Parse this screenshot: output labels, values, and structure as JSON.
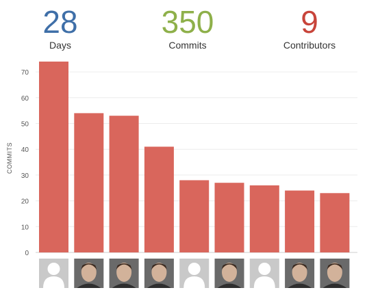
{
  "stats": {
    "days": {
      "value": "28",
      "label": "Days",
      "color": "#3f6fa8"
    },
    "commits": {
      "value": "350",
      "label": "Commits",
      "color": "#8eb04a"
    },
    "contributors": {
      "value": "9",
      "label": "Contributors",
      "color": "#c8443a"
    }
  },
  "chart_data": {
    "type": "bar",
    "ylabel": "COMMITS",
    "ylim": [
      0,
      70
    ],
    "yticks": [
      0,
      10,
      20,
      30,
      40,
      50,
      60,
      70
    ],
    "grid": true,
    "bar_color": "#d9665c",
    "values": [
      74,
      54,
      53,
      41,
      28,
      27,
      26,
      24,
      23
    ]
  },
  "contributors": [
    {
      "avatar": "default-avatar-icon"
    },
    {
      "avatar": "user-photo"
    },
    {
      "avatar": "user-photo"
    },
    {
      "avatar": "user-photo"
    },
    {
      "avatar": "default-avatar-icon"
    },
    {
      "avatar": "user-photo"
    },
    {
      "avatar": "default-avatar-icon"
    },
    {
      "avatar": "user-photo"
    },
    {
      "avatar": "user-photo"
    }
  ]
}
